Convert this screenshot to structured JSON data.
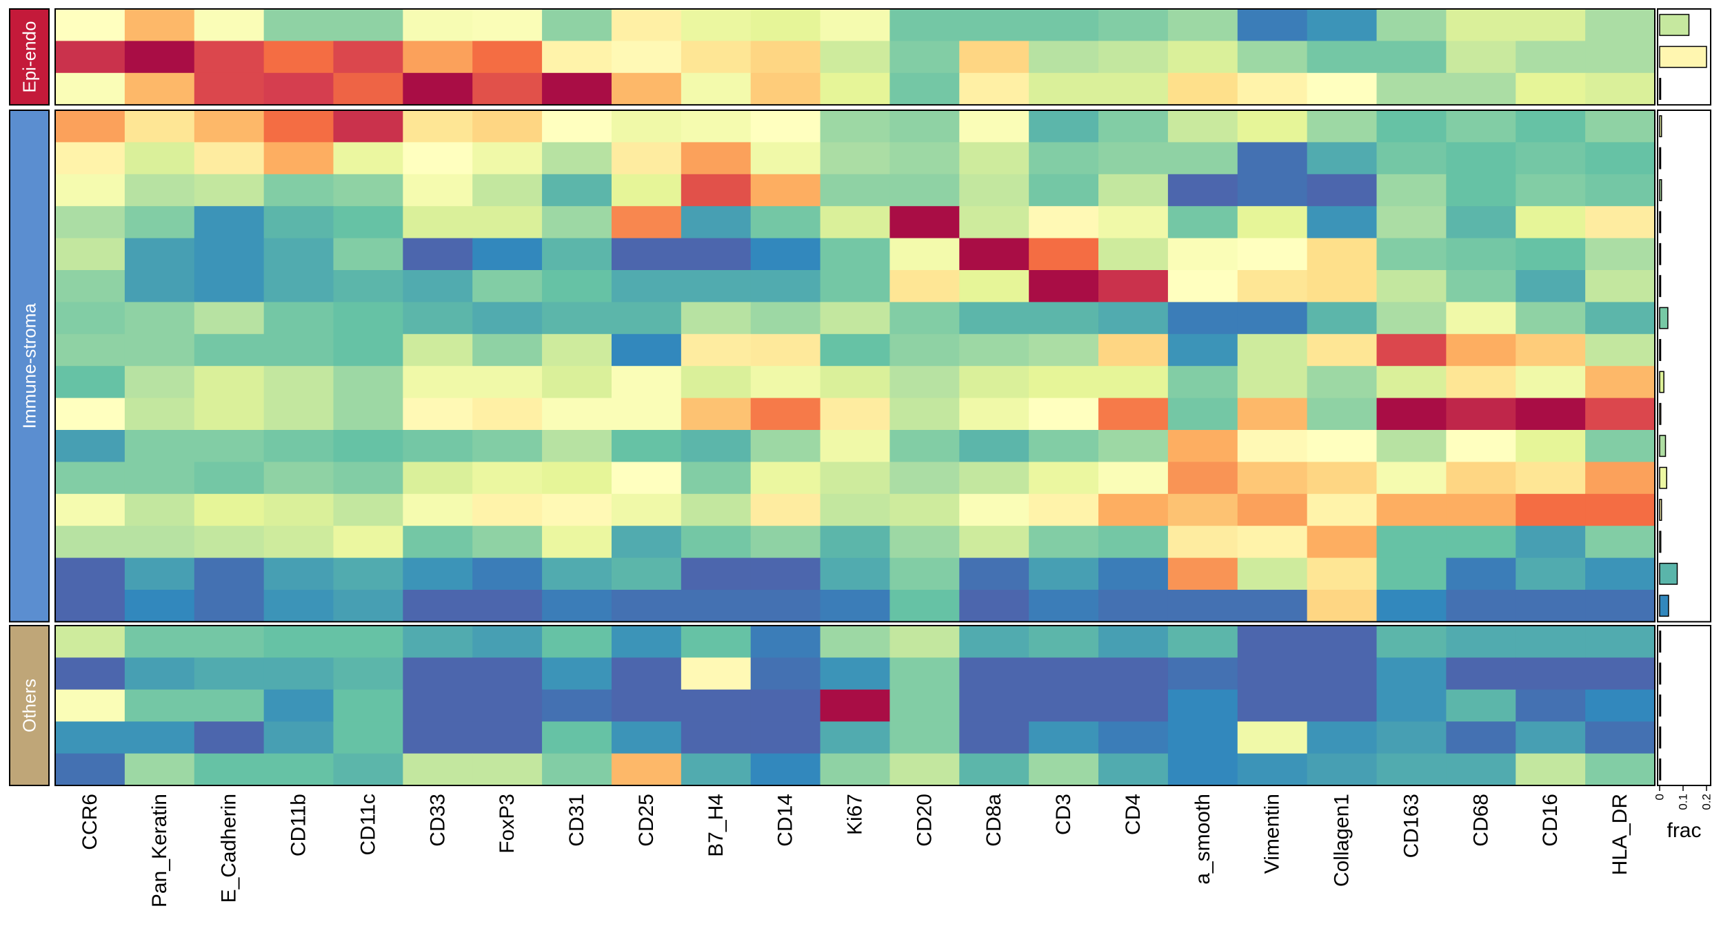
{
  "chart_data": {
    "type": "heatmap",
    "columns": [
      "CCR6",
      "Pan_Keratin",
      "E_Cadherin",
      "CD11b",
      "CD11c",
      "CD33",
      "FoxP3",
      "CD31",
      "CD25",
      "B7_H4",
      "CD14",
      "Ki67",
      "CD20",
      "CD8a",
      "CD3",
      "CD4",
      "a_smooth",
      "Vimentin",
      "Collagen1",
      "CD163",
      "CD68",
      "CD16",
      "HLA_DR"
    ],
    "color_scale": {
      "min": 0,
      "max": 1,
      "stops": [
        "#5e4fa2",
        "#3288bd",
        "#66c2a5",
        "#abdda4",
        "#e6f598",
        "#ffffbf",
        "#fee08b",
        "#fdae61",
        "#f46d43",
        "#d53e4f",
        "#9e0142"
      ],
      "palette_name": "Spectral (reversed)"
    },
    "groups": [
      {
        "name": "Epi-endo",
        "color": "#c41a3a",
        "rows": [
          [
            0.5,
            0.68,
            0.48,
            0.26,
            0.26,
            0.47,
            0.48,
            0.26,
            0.55,
            0.42,
            0.4,
            0.46,
            0.22,
            0.22,
            0.22,
            0.24,
            0.28,
            0.08,
            0.12,
            0.28,
            0.38,
            0.38,
            0.3
          ],
          [
            0.92,
            0.98,
            0.88,
            0.8,
            0.88,
            0.72,
            0.8,
            0.54,
            0.52,
            0.58,
            0.62,
            0.36,
            0.24,
            0.62,
            0.32,
            0.34,
            0.38,
            0.28,
            0.22,
            0.22,
            0.35,
            0.3,
            0.3
          ],
          [
            0.48,
            0.68,
            0.88,
            0.9,
            0.82,
            0.98,
            0.86,
            0.98,
            0.68,
            0.45,
            0.64,
            0.4,
            0.22,
            0.55,
            0.38,
            0.38,
            0.6,
            0.54,
            0.5,
            0.3,
            0.3,
            0.4,
            0.38
          ]
        ],
        "frac": [
          0.125,
          0.2,
          0.002
        ]
      },
      {
        "name": "Immune-stroma",
        "color": "#5b8ed0",
        "rows": [
          [
            0.72,
            0.58,
            0.68,
            0.8,
            0.92,
            0.58,
            0.62,
            0.5,
            0.44,
            0.46,
            0.5,
            0.28,
            0.26,
            0.48,
            0.18,
            0.24,
            0.35,
            0.4,
            0.28,
            0.2,
            0.24,
            0.2,
            0.26
          ],
          [
            0.54,
            0.38,
            0.56,
            0.7,
            0.42,
            0.5,
            0.44,
            0.32,
            0.56,
            0.72,
            0.44,
            0.3,
            0.28,
            0.36,
            0.24,
            0.26,
            0.26,
            0.06,
            0.16,
            0.22,
            0.2,
            0.22,
            0.2
          ],
          [
            0.46,
            0.32,
            0.34,
            0.24,
            0.26,
            0.46,
            0.34,
            0.18,
            0.4,
            0.86,
            0.7,
            0.26,
            0.26,
            0.34,
            0.22,
            0.34,
            0.04,
            0.06,
            0.04,
            0.28,
            0.2,
            0.24,
            0.22
          ],
          [
            0.3,
            0.24,
            0.12,
            0.18,
            0.2,
            0.38,
            0.38,
            0.28,
            0.76,
            0.14,
            0.22,
            0.38,
            0.98,
            0.36,
            0.52,
            0.44,
            0.22,
            0.4,
            0.12,
            0.3,
            0.18,
            0.4,
            0.56
          ],
          [
            0.34,
            0.14,
            0.12,
            0.16,
            0.24,
            0.04,
            0.1,
            0.18,
            0.04,
            0.04,
            0.1,
            0.22,
            0.45,
            0.98,
            0.8,
            0.36,
            0.48,
            0.5,
            0.6,
            0.24,
            0.22,
            0.2,
            0.3
          ],
          [
            0.26,
            0.14,
            0.12,
            0.16,
            0.18,
            0.16,
            0.24,
            0.2,
            0.16,
            0.16,
            0.16,
            0.22,
            0.58,
            0.4,
            0.98,
            0.92,
            0.5,
            0.58,
            0.6,
            0.34,
            0.24,
            0.16,
            0.34
          ],
          [
            0.24,
            0.26,
            0.32,
            0.22,
            0.2,
            0.18,
            0.16,
            0.18,
            0.18,
            0.32,
            0.28,
            0.34,
            0.24,
            0.18,
            0.18,
            0.16,
            0.08,
            0.08,
            0.18,
            0.3,
            0.44,
            0.26,
            0.18
          ],
          [
            0.26,
            0.26,
            0.22,
            0.22,
            0.2,
            0.36,
            0.26,
            0.36,
            0.1,
            0.56,
            0.57,
            0.2,
            0.26,
            0.28,
            0.3,
            0.62,
            0.12,
            0.36,
            0.58,
            0.88,
            0.7,
            0.64,
            0.34
          ],
          [
            0.2,
            0.32,
            0.38,
            0.34,
            0.28,
            0.44,
            0.44,
            0.38,
            0.48,
            0.38,
            0.44,
            0.38,
            0.32,
            0.38,
            0.4,
            0.4,
            0.24,
            0.36,
            0.28,
            0.38,
            0.58,
            0.44,
            0.68
          ],
          [
            0.5,
            0.34,
            0.38,
            0.34,
            0.28,
            0.52,
            0.55,
            0.48,
            0.48,
            0.66,
            0.78,
            0.56,
            0.34,
            0.44,
            0.5,
            0.78,
            0.22,
            0.68,
            0.26,
            0.98,
            0.94,
            0.98,
            0.88
          ],
          [
            0.14,
            0.24,
            0.24,
            0.22,
            0.2,
            0.22,
            0.24,
            0.32,
            0.2,
            0.18,
            0.28,
            0.44,
            0.24,
            0.18,
            0.24,
            0.28,
            0.7,
            0.52,
            0.5,
            0.32,
            0.5,
            0.4,
            0.24
          ],
          [
            0.24,
            0.24,
            0.22,
            0.26,
            0.24,
            0.38,
            0.42,
            0.4,
            0.5,
            0.24,
            0.42,
            0.36,
            0.3,
            0.34,
            0.42,
            0.48,
            0.74,
            0.65,
            0.62,
            0.46,
            0.62,
            0.58,
            0.72
          ],
          [
            0.46,
            0.34,
            0.4,
            0.38,
            0.34,
            0.46,
            0.54,
            0.52,
            0.44,
            0.34,
            0.56,
            0.34,
            0.36,
            0.48,
            0.54,
            0.7,
            0.66,
            0.72,
            0.54,
            0.7,
            0.7,
            0.8,
            0.8
          ],
          [
            0.32,
            0.32,
            0.34,
            0.36,
            0.42,
            0.22,
            0.26,
            0.42,
            0.16,
            0.22,
            0.26,
            0.18,
            0.28,
            0.36,
            0.24,
            0.22,
            0.56,
            0.54,
            0.7,
            0.2,
            0.2,
            0.14,
            0.24
          ],
          [
            0.04,
            0.14,
            0.06,
            0.14,
            0.16,
            0.12,
            0.08,
            0.16,
            0.18,
            0.04,
            0.04,
            0.16,
            0.24,
            0.06,
            0.14,
            0.08,
            0.74,
            0.36,
            0.58,
            0.2,
            0.08,
            0.16,
            0.12
          ],
          [
            0.04,
            0.1,
            0.06,
            0.12,
            0.14,
            0.04,
            0.04,
            0.08,
            0.06,
            0.06,
            0.06,
            0.08,
            0.2,
            0.04,
            0.08,
            0.06,
            0.06,
            0.06,
            0.62,
            0.1,
            0.06,
            0.06,
            0.06
          ]
        ],
        "frac": [
          0.008,
          0.003,
          0.008,
          0.002,
          0.004,
          0.002,
          0.035,
          0.002,
          0.018,
          0.005,
          0.025,
          0.03,
          0.008,
          0.005,
          0.075,
          0.038
        ]
      },
      {
        "name": "Others",
        "color": "#bfa678",
        "rows": [
          [
            0.36,
            0.22,
            0.22,
            0.2,
            0.2,
            0.16,
            0.14,
            0.2,
            0.12,
            0.2,
            0.08,
            0.28,
            0.34,
            0.16,
            0.18,
            0.14,
            0.18,
            0.04,
            0.04,
            0.18,
            0.16,
            0.16,
            0.16
          ],
          [
            0.04,
            0.14,
            0.16,
            0.16,
            0.18,
            0.04,
            0.04,
            0.12,
            0.04,
            0.52,
            0.06,
            0.12,
            0.24,
            0.04,
            0.04,
            0.04,
            0.06,
            0.04,
            0.04,
            0.12,
            0.04,
            0.04,
            0.04
          ],
          [
            0.48,
            0.22,
            0.22,
            0.12,
            0.2,
            0.04,
            0.04,
            0.06,
            0.04,
            0.04,
            0.04,
            0.98,
            0.24,
            0.04,
            0.04,
            0.04,
            0.1,
            0.04,
            0.04,
            0.12,
            0.18,
            0.06,
            0.1
          ],
          [
            0.12,
            0.12,
            0.04,
            0.14,
            0.2,
            0.04,
            0.04,
            0.2,
            0.12,
            0.04,
            0.04,
            0.16,
            0.24,
            0.04,
            0.12,
            0.08,
            0.1,
            0.44,
            0.12,
            0.14,
            0.06,
            0.14,
            0.06
          ],
          [
            0.06,
            0.28,
            0.2,
            0.2,
            0.18,
            0.34,
            0.34,
            0.24,
            0.68,
            0.16,
            0.1,
            0.26,
            0.34,
            0.18,
            0.28,
            0.16,
            0.1,
            0.12,
            0.14,
            0.16,
            0.16,
            0.34,
            0.24
          ]
        ],
        "frac": [
          0.001,
          0.001,
          0.001,
          0.003,
          0.004
        ]
      }
    ],
    "frac_axis": {
      "title": "frac",
      "min": 0,
      "max": 0.2,
      "ticks": [
        "0",
        "0.1",
        "0.2"
      ]
    }
  }
}
